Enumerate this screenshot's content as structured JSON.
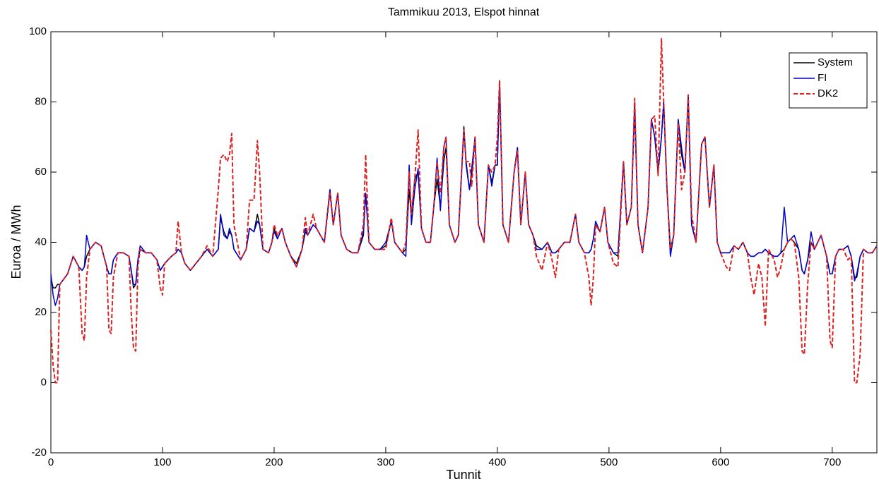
{
  "chart_data": {
    "type": "line",
    "title": "Tammikuu 2013, Elspot hinnat",
    "x_label": "Tunnit",
    "y_label": "Euroa / MWh",
    "xlim": [
      0,
      740
    ],
    "ylim": [
      -20,
      100
    ],
    "xticks": [
      0,
      100,
      200,
      300,
      400,
      500,
      600,
      700
    ],
    "yticks": [
      -20,
      0,
      20,
      40,
      60,
      80,
      100
    ],
    "legend": "upper right",
    "x": [
      0,
      2,
      4,
      6,
      8,
      15,
      20,
      25,
      28,
      30,
      32,
      35,
      40,
      45,
      50,
      52,
      54,
      56,
      60,
      65,
      70,
      72,
      74,
      76,
      78,
      80,
      85,
      90,
      95,
      98,
      100,
      102,
      108,
      112,
      114,
      117,
      120,
      125,
      130,
      135,
      140,
      145,
      150,
      152,
      155,
      158,
      160,
      162,
      164,
      170,
      175,
      178,
      182,
      185,
      187,
      190,
      195,
      198,
      200,
      203,
      207,
      210,
      215,
      220,
      225,
      228,
      230,
      235,
      238,
      245,
      250,
      253,
      257,
      260,
      265,
      270,
      275,
      280,
      282,
      285,
      290,
      295,
      300,
      305,
      308,
      315,
      318,
      321,
      323,
      326,
      329,
      332,
      336,
      340,
      343,
      346,
      349,
      352,
      354,
      357,
      362,
      365,
      370,
      372,
      375,
      377,
      380,
      383,
      388,
      392,
      395,
      398,
      400,
      402,
      405,
      410,
      415,
      418,
      421,
      425,
      428,
      432,
      435,
      440,
      445,
      449,
      452,
      455,
      460,
      465,
      470,
      473,
      478,
      482,
      484,
      486,
      488,
      492,
      496,
      499,
      504,
      508,
      513,
      516,
      520,
      523,
      526,
      530,
      535,
      538,
      541,
      544,
      547,
      549,
      552,
      555,
      558,
      562,
      565,
      568,
      571,
      574,
      578,
      583,
      586,
      590,
      594,
      597,
      600,
      605,
      608,
      612,
      616,
      620,
      624,
      627,
      630,
      634,
      637,
      640,
      643,
      648,
      651,
      654,
      657,
      660,
      663,
      666,
      670,
      673,
      675,
      678,
      681,
      684,
      690,
      695,
      698,
      700,
      703,
      706,
      710,
      714,
      717,
      720,
      722,
      725,
      728,
      732,
      736,
      740
    ],
    "series": [
      {
        "name": "System",
        "color": "#000000",
        "dashed": false,
        "values": [
          30,
          27,
          27,
          28,
          28,
          31,
          36,
          33,
          32,
          33,
          36,
          38,
          40,
          39,
          33,
          31,
          31,
          35,
          37,
          37,
          36,
          32,
          27,
          28,
          35,
          38,
          37,
          37,
          35,
          32,
          33,
          34,
          36,
          37,
          38,
          37,
          34,
          32,
          34,
          36,
          38,
          36,
          38,
          47,
          43,
          41,
          43,
          42,
          38,
          35,
          38,
          44,
          43,
          48,
          45,
          38,
          37,
          40,
          44,
          41,
          44,
          40,
          36,
          34,
          38,
          43,
          42,
          45,
          44,
          40,
          55,
          45,
          54,
          42,
          38,
          37,
          37,
          42,
          54,
          40,
          38,
          38,
          39,
          46,
          40,
          37,
          38,
          55,
          47,
          58,
          60,
          44,
          40,
          40,
          50,
          58,
          50,
          63,
          67,
          45,
          40,
          42,
          73,
          62,
          55,
          59,
          70,
          45,
          40,
          62,
          57,
          62,
          62,
          86,
          45,
          40,
          60,
          67,
          45,
          60,
          45,
          42,
          39,
          38,
          40,
          37,
          37,
          38,
          40,
          40,
          48,
          40,
          37,
          37,
          38,
          41,
          45,
          43,
          50,
          40,
          37,
          36,
          63,
          45,
          50,
          80,
          45,
          37,
          50,
          75,
          70,
          60,
          70,
          80,
          55,
          38,
          42,
          75,
          65,
          60,
          82,
          45,
          40,
          68,
          70,
          50,
          62,
          40,
          37,
          37,
          37,
          39,
          38,
          40,
          37,
          36,
          36,
          37,
          37,
          38,
          37,
          36,
          36,
          37,
          38,
          40,
          41,
          40,
          38,
          32,
          31,
          35,
          40,
          38,
          42,
          36,
          31,
          31,
          36,
          38,
          38,
          39,
          36,
          30,
          30,
          36,
          38,
          37,
          37,
          39
        ]
      },
      {
        "name": "FI",
        "color": "#0000cc",
        "dashed": false,
        "values": [
          31,
          25,
          22,
          24,
          28,
          31,
          36,
          33,
          32,
          33,
          42,
          38,
          40,
          39,
          33,
          31,
          31,
          35,
          37,
          37,
          36,
          32,
          28,
          28,
          35,
          39,
          37,
          37,
          35,
          32,
          33,
          34,
          36,
          37,
          38,
          37,
          34,
          32,
          34,
          36,
          38,
          36,
          38,
          48,
          42,
          41,
          44,
          42,
          38,
          35,
          38,
          44,
          43,
          46,
          45,
          38,
          37,
          40,
          43,
          41,
          44,
          40,
          36,
          33,
          38,
          44,
          42,
          45,
          44,
          40,
          55,
          45,
          54,
          42,
          38,
          37,
          37,
          43,
          54,
          40,
          38,
          38,
          40,
          46,
          40,
          37,
          36,
          62,
          45,
          55,
          61,
          44,
          40,
          40,
          50,
          64,
          49,
          67,
          70,
          45,
          40,
          42,
          72,
          63,
          55,
          61,
          70,
          45,
          40,
          62,
          56,
          62,
          62,
          86,
          45,
          40,
          60,
          67,
          45,
          60,
          45,
          42,
          38,
          38,
          40,
          37,
          37,
          38,
          40,
          40,
          48,
          40,
          37,
          37,
          38,
          41,
          46,
          43,
          50,
          40,
          37,
          37,
          63,
          45,
          50,
          78,
          45,
          37,
          50,
          75,
          70,
          60,
          70,
          80,
          55,
          36,
          42,
          75,
          67,
          60,
          81,
          45,
          40,
          68,
          70,
          50,
          62,
          40,
          37,
          37,
          37,
          39,
          38,
          40,
          37,
          36,
          36,
          37,
          37,
          38,
          37,
          36,
          36,
          37,
          50,
          40,
          41,
          42,
          38,
          32,
          31,
          35,
          43,
          38,
          42,
          36,
          31,
          31,
          36,
          38,
          38,
          39,
          36,
          29,
          31,
          36,
          38,
          37,
          37,
          39
        ]
      },
      {
        "name": "DK2",
        "color": "#dd2222",
        "dashed": true,
        "values": [
          15,
          5,
          0,
          0,
          28,
          31,
          36,
          33,
          14,
          12,
          30,
          38,
          40,
          39,
          33,
          15,
          14,
          30,
          37,
          37,
          36,
          20,
          10,
          9,
          33,
          38,
          37,
          37,
          35,
          27,
          25,
          34,
          36,
          37,
          46,
          37,
          34,
          32,
          34,
          36,
          39,
          36,
          55,
          64,
          65,
          63,
          65,
          71,
          45,
          35,
          38,
          52,
          52,
          69,
          60,
          38,
          37,
          40,
          45,
          42,
          44,
          40,
          36,
          33,
          38,
          47,
          42,
          48,
          44,
          40,
          54,
          45,
          54,
          42,
          38,
          37,
          37,
          45,
          65,
          40,
          38,
          38,
          38,
          47,
          40,
          37,
          40,
          60,
          48,
          58,
          72,
          44,
          40,
          40,
          50,
          63,
          54,
          67,
          70,
          45,
          40,
          42,
          72,
          63,
          63,
          56,
          70,
          45,
          40,
          62,
          60,
          62,
          70,
          86,
          45,
          40,
          60,
          66,
          45,
          60,
          45,
          42,
          36,
          32,
          40,
          35,
          30,
          38,
          40,
          40,
          48,
          40,
          37,
          30,
          22,
          30,
          45,
          43,
          50,
          40,
          34,
          33,
          63,
          45,
          50,
          81,
          45,
          37,
          50,
          75,
          76,
          59,
          98,
          80,
          55,
          38,
          42,
          74,
          55,
          60,
          82,
          48,
          40,
          68,
          70,
          50,
          62,
          40,
          37,
          33,
          32,
          39,
          38,
          40,
          37,
          30,
          25,
          34,
          30,
          16,
          38,
          35,
          30,
          33,
          38,
          40,
          41,
          40,
          30,
          9,
          8,
          28,
          40,
          38,
          42,
          36,
          12,
          10,
          36,
          38,
          38,
          35,
          36,
          0,
          0,
          8,
          38,
          37,
          37,
          39
        ]
      }
    ]
  }
}
